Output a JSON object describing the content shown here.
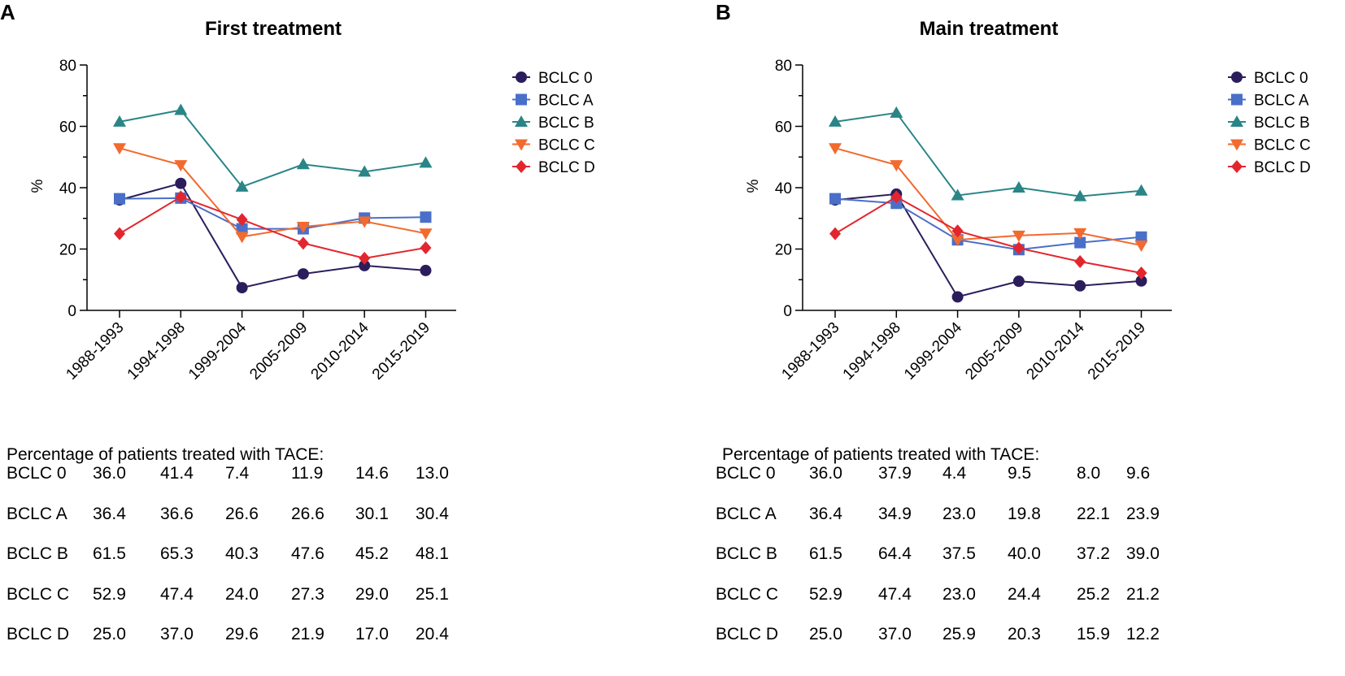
{
  "panels": [
    {
      "letter": "A",
      "chart_data": {
        "type": "line",
        "title": "First treatment",
        "xlabel": "",
        "ylabel": "%",
        "ylim": [
          0,
          80
        ],
        "yticks": [
          0,
          20,
          40,
          60,
          80
        ],
        "grid": false,
        "legend": "top-right",
        "categories": [
          "1988-1993",
          "1994-1998",
          "1999-2004",
          "2005-2009",
          "2010-2014",
          "2015-2019"
        ],
        "series": [
          {
            "name": "BCLC 0",
            "values": [
              36.0,
              41.4,
              7.4,
              11.9,
              14.6,
              13.0
            ],
            "color": "#2b1d5c",
            "marker": "circle"
          },
          {
            "name": "BCLC A",
            "values": [
              36.4,
              36.6,
              26.6,
              26.6,
              30.1,
              30.4
            ],
            "color": "#4a6fc9",
            "marker": "square"
          },
          {
            "name": "BCLC B",
            "values": [
              61.5,
              65.3,
              40.3,
              47.6,
              45.2,
              48.1
            ],
            "color": "#2a8587",
            "marker": "triangle-up"
          },
          {
            "name": "BCLC C",
            "values": [
              52.9,
              47.4,
              24.0,
              27.3,
              29.0,
              25.1
            ],
            "color": "#f26a2e",
            "marker": "triangle-down"
          },
          {
            "name": "BCLC D",
            "values": [
              25.0,
              37.0,
              29.6,
              21.9,
              17.0,
              20.4
            ],
            "color": "#e3262e",
            "marker": "diamond"
          }
        ]
      },
      "table": {
        "caption": "Percentage of patients treated with TACE:",
        "rows": [
          {
            "label": "BCLC 0",
            "cells": [
              "36.0",
              "41.4",
              "7.4",
              "11.9",
              "14.6",
              "13.0"
            ]
          },
          {
            "label": "BCLC A",
            "cells": [
              "36.4",
              "36.6",
              "26.6",
              "26.6",
              "30.1",
              "30.4"
            ]
          },
          {
            "label": "BCLC B",
            "cells": [
              "61.5",
              "65.3",
              "40.3",
              "47.6",
              "45.2",
              "48.1"
            ]
          },
          {
            "label": "BCLC C",
            "cells": [
              "52.9",
              "47.4",
              "24.0",
              "27.3",
              "29.0",
              "25.1"
            ]
          },
          {
            "label": "BCLC D",
            "cells": [
              "25.0",
              "37.0",
              "29.6",
              "21.9",
              "17.0",
              "20.4"
            ]
          }
        ]
      }
    },
    {
      "letter": "B",
      "chart_data": {
        "type": "line",
        "title": "Main treatment",
        "xlabel": "",
        "ylabel": "%",
        "ylim": [
          0,
          80
        ],
        "yticks": [
          0,
          20,
          40,
          60,
          80
        ],
        "grid": false,
        "legend": "top-right",
        "categories": [
          "1988-1993",
          "1994-1998",
          "1999-2004",
          "2005-2009",
          "2010-2014",
          "2015-2019"
        ],
        "series": [
          {
            "name": "BCLC 0",
            "values": [
              36.0,
              37.9,
              4.4,
              9.5,
              8.0,
              9.6
            ],
            "color": "#2b1d5c",
            "marker": "circle"
          },
          {
            "name": "BCLC A",
            "values": [
              36.4,
              34.9,
              23.0,
              19.8,
              22.1,
              23.9
            ],
            "color": "#4a6fc9",
            "marker": "square"
          },
          {
            "name": "BCLC B",
            "values": [
              61.5,
              64.4,
              37.5,
              40.0,
              37.2,
              39.0
            ],
            "color": "#2a8587",
            "marker": "triangle-up"
          },
          {
            "name": "BCLC C",
            "values": [
              52.9,
              47.4,
              23.0,
              24.4,
              25.2,
              21.2
            ],
            "color": "#f26a2e",
            "marker": "triangle-down"
          },
          {
            "name": "BCLC D",
            "values": [
              25.0,
              37.0,
              25.9,
              20.3,
              15.9,
              12.2
            ],
            "color": "#e3262e",
            "marker": "diamond"
          }
        ]
      },
      "table": {
        "caption": "Percentage of patients treated with TACE:",
        "rows": [
          {
            "label": "BCLC 0",
            "cells": [
              "36.0",
              "37.9",
              "4.4",
              "9.5",
              "8.0",
              "9.6"
            ]
          },
          {
            "label": "BCLC A",
            "cells": [
              "36.4",
              "34.9",
              "23.0",
              "19.8",
              "22.1",
              "23.9"
            ]
          },
          {
            "label": "BCLC B",
            "cells": [
              "61.5",
              "64.4",
              "37.5",
              "40.0",
              "37.2",
              "39.0"
            ]
          },
          {
            "label": "BCLC C",
            "cells": [
              "52.9",
              "47.4",
              "23.0",
              "24.4",
              "25.2",
              "21.2"
            ]
          },
          {
            "label": "BCLC D",
            "cells": [
              "25.0",
              "37.0",
              "25.9",
              "20.3",
              "15.9",
              "12.2"
            ]
          }
        ]
      }
    }
  ]
}
